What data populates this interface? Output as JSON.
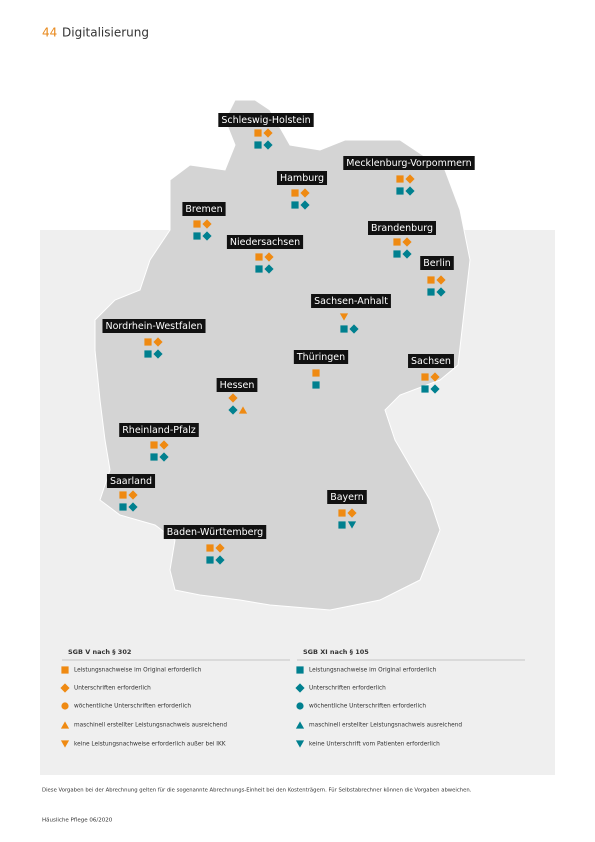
{
  "header": {
    "page_number": "44",
    "title": "Digitalisierung"
  },
  "map": {
    "states": [
      {
        "label": "Schleswig-Holstein"
      },
      {
        "label": "Mecklenburg-Vorpommern"
      },
      {
        "label": "Hamburg"
      },
      {
        "label": "Bremen"
      },
      {
        "label": "Brandenburg"
      },
      {
        "label": "Niedersachsen"
      },
      {
        "label": "Berlin"
      },
      {
        "label": "Sachsen-Anhalt"
      },
      {
        "label": "Nordrhein-Westfalen"
      },
      {
        "label": "Thüringen"
      },
      {
        "label": "Sachsen"
      },
      {
        "label": "Hessen"
      },
      {
        "label": "Rheinland-Pfalz"
      },
      {
        "label": "Saarland"
      },
      {
        "label": "Bayern"
      },
      {
        "label": "Baden-Württemberg"
      }
    ]
  },
  "legend": {
    "columns": [
      {
        "heading": "SGB V nach § 302",
        "items": [
          "Leistungsnachweise im Original erforderlich",
          "Unterschriften erforderlich",
          "wöchentliche Unterschriften erforderlich",
          "maschinell erstellter Leistungsnachweis ausreichend",
          "keine Leistungsnachweise erforderlich außer bei IKK"
        ]
      },
      {
        "heading": "SGB XI nach § 105",
        "items": [
          "Leistungsnachweise im Original erforderlich",
          "Unterschriften erforderlich",
          "wöchentliche Unterschriften erforderlich",
          "maschinell erstellter Leistungsnachweis ausreichend",
          "keine Unterschrift vom Patienten erforderlich"
        ]
      }
    ]
  },
  "footnote": "Diese Vorgaben bei der Abrechnung gelten für die sogenannte Abrechnungs-Einheit bei den Kostenträgern. Für Selbstabrechner können die Vorgaben abweichen.",
  "footer": "Häusliche Pflege 06/2020"
}
